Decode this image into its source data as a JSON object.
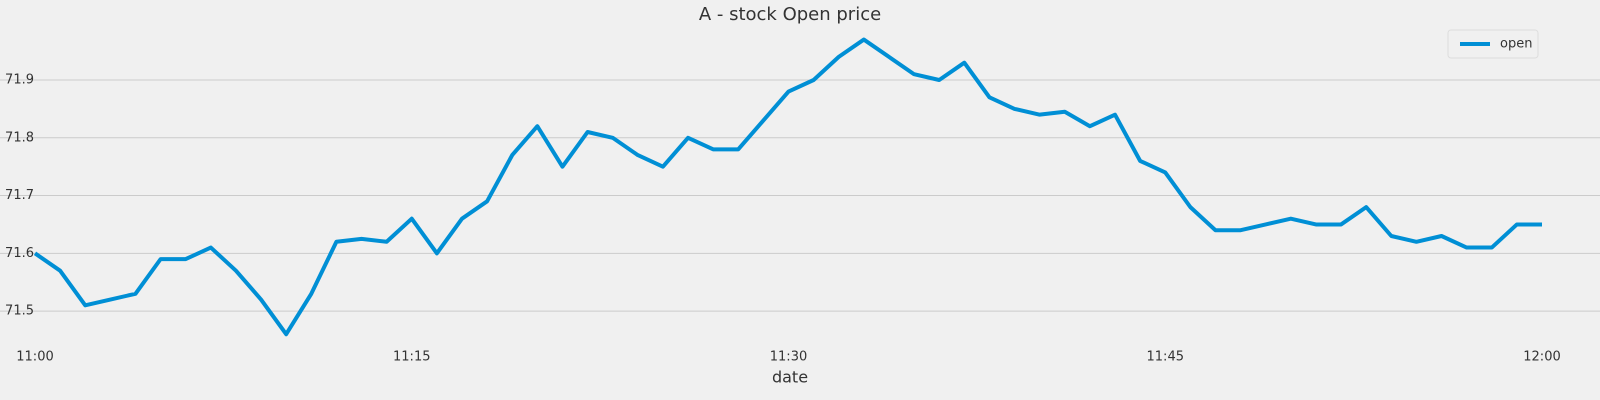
{
  "chart_data": {
    "type": "line",
    "title": "A - stock Open price",
    "xlabel": "date",
    "x": [
      "11:00",
      "11:01",
      "11:02",
      "11:03",
      "11:04",
      "11:05",
      "11:06",
      "11:07",
      "11:08",
      "11:09",
      "11:10",
      "11:11",
      "11:12",
      "11:13",
      "11:14",
      "11:15",
      "11:16",
      "11:17",
      "11:18",
      "11:19",
      "11:20",
      "11:21",
      "11:22",
      "11:23",
      "11:24",
      "11:25",
      "11:26",
      "11:27",
      "11:28",
      "11:29",
      "11:30",
      "11:31",
      "11:32",
      "11:33",
      "11:34",
      "11:35",
      "11:36",
      "11:37",
      "11:38",
      "11:39",
      "11:40",
      "11:41",
      "11:42",
      "11:43",
      "11:44",
      "11:45",
      "11:46",
      "11:47",
      "11:48",
      "11:49",
      "11:50",
      "11:51",
      "11:52",
      "11:53",
      "11:54",
      "11:55",
      "11:56",
      "11:57",
      "11:58",
      "11:59",
      "12:00"
    ],
    "series": [
      {
        "name": "open",
        "color": "#008fd5",
        "values": [
          71.6,
          71.57,
          71.51,
          71.52,
          71.53,
          71.59,
          71.59,
          71.61,
          71.57,
          71.52,
          71.46,
          71.53,
          71.62,
          71.625,
          71.62,
          71.66,
          71.6,
          71.66,
          71.69,
          71.77,
          71.82,
          71.75,
          71.81,
          71.8,
          71.77,
          71.75,
          71.8,
          71.78,
          71.78,
          71.83,
          71.88,
          71.9,
          71.94,
          71.97,
          71.94,
          71.91,
          71.9,
          71.93,
          71.87,
          71.85,
          71.84,
          71.845,
          71.82,
          71.84,
          71.76,
          71.74,
          71.68,
          71.64,
          71.64,
          71.65,
          71.66,
          71.65,
          71.65,
          71.68,
          71.63,
          71.62,
          71.63,
          71.61,
          71.61,
          71.65,
          71.65
        ]
      }
    ],
    "xticks": [
      "11:00",
      "11:15",
      "11:30",
      "11:45",
      "12:00"
    ],
    "ylim": [
      71.45,
      71.99
    ],
    "yticks": [
      71.5,
      71.6,
      71.7,
      71.8,
      71.9
    ],
    "grid": true,
    "legend": "upper right"
  }
}
